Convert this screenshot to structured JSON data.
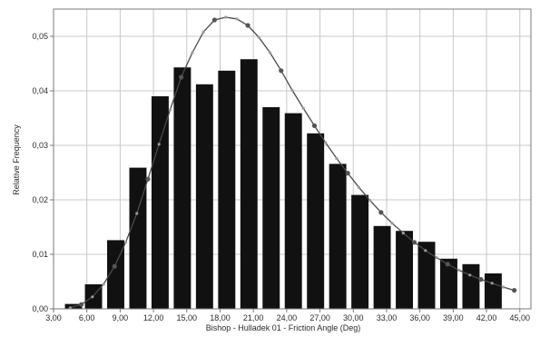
{
  "chart_data": {
    "type": "bar",
    "xlabel": "Bishop - Hulladek 01 - Friction Angle (Deg)",
    "ylabel": "Relative Frequency",
    "xlim": [
      3,
      46
    ],
    "ylim": [
      0,
      0.055
    ],
    "grid": true,
    "x_ticks": [
      "3,00",
      "6,00",
      "9,00",
      "12,00",
      "15,00",
      "18,00",
      "21,00",
      "24,00",
      "27,00",
      "30,00",
      "33,00",
      "36,00",
      "39,00",
      "42,00",
      "45,00"
    ],
    "y_ticks": [
      "0,00",
      "0,01",
      "0,02",
      "0,03",
      "0,04",
      "0,05"
    ],
    "bars": {
      "centers": [
        4.8,
        6.6,
        8.6,
        10.6,
        12.6,
        14.6,
        16.6,
        18.6,
        20.6,
        22.6,
        24.6,
        26.6,
        28.6,
        30.6,
        32.6,
        34.6,
        36.6,
        38.6,
        40.6,
        42.6
      ],
      "values": [
        0.0009,
        0.0045,
        0.0126,
        0.0259,
        0.039,
        0.0443,
        0.0412,
        0.0437,
        0.0458,
        0.037,
        0.0359,
        0.0322,
        0.0266,
        0.0209,
        0.0152,
        0.0143,
        0.0123,
        0.0092,
        0.0082,
        0.0065
      ]
    },
    "series": [
      {
        "type": "line",
        "x": [
          4.5,
          5.5,
          6.5,
          7.5,
          8.5,
          9.5,
          10.5,
          11.5,
          12.5,
          13.5,
          14.5,
          15.5,
          16.5,
          17.5,
          18.5,
          19.5,
          20.5,
          21.5,
          22.5,
          23.5,
          24.5,
          25.5,
          26.5,
          27.5,
          28.5,
          29.5,
          30.5,
          31.5,
          32.5,
          33.5,
          34.5,
          35.5,
          36.5,
          37.5,
          38.5,
          39.5,
          40.5,
          41.5,
          42.5,
          43.5,
          44.5
        ],
        "values": [
          0.0002,
          0.0008,
          0.0022,
          0.0045,
          0.0078,
          0.0122,
          0.0175,
          0.0238,
          0.0302,
          0.0365,
          0.0425,
          0.047,
          0.0508,
          0.053,
          0.0535,
          0.0532,
          0.052,
          0.0498,
          0.047,
          0.0437,
          0.0401,
          0.0368,
          0.0336,
          0.0305,
          0.0276,
          0.0249,
          0.0223,
          0.0199,
          0.0177,
          0.0157,
          0.0139,
          0.0122,
          0.0107,
          0.0094,
          0.0082,
          0.0071,
          0.0062,
          0.0054,
          0.0047,
          0.004,
          0.0034
        ]
      }
    ]
  },
  "colors": {
    "bar": "#111111",
    "line": "#4a4a4a",
    "marker_large": "#555555",
    "marker_small": "#9a9a9a",
    "grid": "#c8c8c8",
    "axis": "#7a7a7a"
  }
}
